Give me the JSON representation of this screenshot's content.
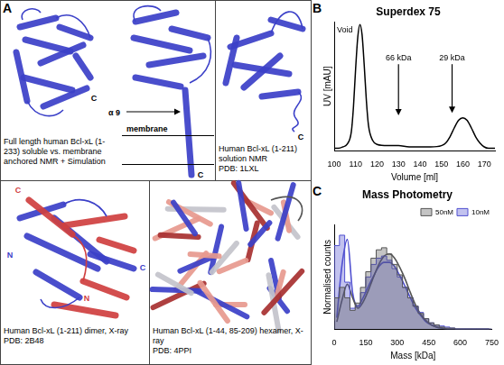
{
  "panel_a": {
    "panel": "A",
    "cells": [
      {
        "caption": "Full length human Bcl-xL (1-233) soluble vs. membrane anchored NMR + Simulation",
        "labels": [
          "C",
          "α 9",
          "membrane",
          "C"
        ]
      },
      {
        "caption": "Human Bcl-xL (1-211) solution NMR",
        "pdb": "PDB: 1LXL",
        "labels": [
          "C"
        ]
      },
      {
        "caption": "Human Bcl-xL (1-211) dimer, X-ray",
        "pdb": "PDB: 2B48",
        "labels": [
          "C",
          "N",
          "C",
          "N"
        ]
      },
      {
        "caption": "Human Bcl-xL (1-44, 85-209) hexamer, X-ray",
        "pdb": "PDB: 4PPI",
        "labels": []
      }
    ]
  },
  "chart_data": [
    {
      "panel": "B",
      "type": "line",
      "title": "Superdex 75",
      "x_label": "Volume [ml]",
      "y_label": "UV [mAU]",
      "x": [
        100,
        102,
        104,
        106,
        108,
        109,
        110,
        111,
        112,
        113,
        114,
        115,
        116,
        118,
        120,
        125,
        130,
        135,
        140,
        145,
        150,
        152,
        154,
        156,
        158,
        160,
        162,
        164,
        166,
        168,
        170,
        172,
        175
      ],
      "values": [
        2,
        2,
        3,
        5,
        15,
        35,
        65,
        90,
        100,
        92,
        68,
        40,
        20,
        8,
        5,
        4,
        4,
        3,
        3,
        3,
        4,
        6,
        11,
        18,
        24,
        26,
        24,
        18,
        11,
        6,
        3,
        2,
        2
      ],
      "color": "#000000",
      "xlim": [
        100,
        175
      ],
      "xticks": [
        100,
        110,
        120,
        130,
        140,
        150,
        160,
        170
      ],
      "ylim": [
        0,
        102
      ],
      "tick_labels": "x",
      "grid": false,
      "annotations": [
        {
          "text": "Void",
          "x": 105,
          "y": 92
        },
        {
          "text": "66 kDa",
          "x": 130,
          "y": 70,
          "arrow_to": 28
        },
        {
          "text": "29 kDa",
          "x": 155,
          "y": 70,
          "arrow_to": 30
        }
      ]
    },
    {
      "panel": "C",
      "type": "histogram",
      "title": "Mass Photometry",
      "x_label": "Mass [kDa]",
      "y_label": "Normalised counts",
      "bins": [
        0,
        25,
        50,
        75,
        100,
        125,
        150,
        175,
        200,
        225,
        250,
        275,
        300,
        325,
        350,
        375,
        400,
        425,
        450,
        475,
        500,
        525,
        550,
        575,
        600,
        625,
        650,
        675,
        700,
        725,
        750
      ],
      "series": [
        {
          "name": "50nM",
          "color": "#555555",
          "values": [
            8,
            30,
            40,
            30,
            18,
            25,
            40,
            55,
            68,
            76,
            78,
            72,
            62,
            52,
            40,
            30,
            22,
            15,
            10,
            6,
            4,
            2,
            1,
            1,
            0,
            0,
            0,
            0,
            0,
            0
          ],
          "fit": [
            7,
            28,
            43,
            30,
            20,
            26,
            37,
            50,
            62,
            70,
            72,
            68,
            59,
            48,
            35,
            23,
            14,
            8,
            4,
            2,
            1,
            0,
            0,
            0,
            0,
            0,
            0,
            0,
            0,
            0
          ]
        },
        {
          "name": "10nM",
          "color": "#5050d0",
          "values": [
            15,
            80,
            90,
            45,
            20,
            22,
            35,
            50,
            62,
            68,
            70,
            66,
            58,
            50,
            40,
            30,
            22,
            16,
            10,
            6,
            4,
            3,
            2,
            1,
            0,
            0,
            0,
            0,
            0,
            0
          ],
          "fit": [
            11,
            62,
            86,
            35,
            22,
            30,
            41,
            51,
            60,
            64,
            64,
            60,
            51,
            41,
            30,
            20,
            13,
            7,
            4,
            2,
            1,
            0,
            0,
            0,
            0,
            0,
            0,
            0,
            0,
            0
          ]
        }
      ],
      "xlim": [
        0,
        750
      ],
      "xticks": [
        0,
        150,
        300,
        450,
        600,
        750
      ],
      "ylim": [
        0,
        100
      ],
      "tick_labels": "x",
      "grid": false,
      "legend": "upper right"
    }
  ]
}
